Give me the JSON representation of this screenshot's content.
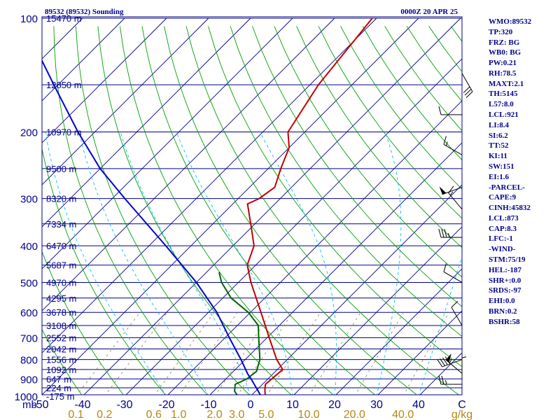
{
  "header": {
    "station": "89532 (89532) Sounding",
    "time": "0000Z 20 APR 25"
  },
  "colors": {
    "frame": "#00008b",
    "isobar": "#00008b",
    "isotherm": "#00008b",
    "dry_adiabat": "#00a000",
    "moist_adiabat": "#00bfff",
    "mixing_ratio": "#8b7d3a",
    "temperature": "#c00000",
    "dewpoint": "#006400",
    "parcel": "#0000cd",
    "wind_barb": "#000000",
    "mixing_ratio_label": "#b8860b"
  },
  "indices": [
    "WMO:89532",
    "TP:320",
    "FRZ: BG",
    "WB0: BG",
    "PW:0.21",
    "RH:78.5",
    "MAXT:2.1",
    "TH:5145",
    "L57:8.0",
    "LCL:921",
    "LI:8.4",
    "SI:6.2",
    "TT:52",
    "KI:11",
    "SW:151",
    "EI:1.6",
    "-PARCEL-",
    "CAPE:9",
    "CINH:45832",
    "LCL:873",
    "CAP:8.3",
    "LFC:-1",
    "-WIND-",
    "STM:75/19",
    "HEL:-187",
    "SHR+:0.0",
    "SRDS:-97",
    "EHI:0.0",
    "BRN:0.2",
    "BSHR:58"
  ],
  "chart_data": {
    "type": "skew-t log-p",
    "title": "89532 (89532) Sounding",
    "valid_time": "0000Z 20 APR 25",
    "xlabel": "",
    "ylabel": "mb",
    "y_scale": "log",
    "ylim": [
      1000,
      100
    ],
    "xlim": [
      -50,
      50
    ],
    "pressure_ticks": [
      100,
      200,
      300,
      400,
      500,
      600,
      700,
      800,
      900,
      1000
    ],
    "temperature_ticks": [
      -50,
      -40,
      -30,
      -20,
      -10,
      0,
      10,
      20,
      30,
      40
    ],
    "temperature_tick_labels": [
      "-50",
      "-40",
      "-30",
      "-20",
      "-10",
      "0",
      "10",
      "20",
      "30",
      "40"
    ],
    "x_end_label": "C",
    "y_unit_label": "mb",
    "mixing_ratio_labels": [
      "0.1",
      "0.2",
      "0.6",
      "1.0",
      "2.0",
      "3.0",
      "5.0",
      "10.0",
      "20.0",
      "40.0"
    ],
    "mixing_ratio_unit": "g/kg",
    "height_levels": [
      {
        "p": 100,
        "label": "15470 m"
      },
      {
        "p": 150,
        "label": "12850 m"
      },
      {
        "p": 200,
        "label": "10970 m"
      },
      {
        "p": 250,
        "label": "9500 m"
      },
      {
        "p": 300,
        "label": "8320 m"
      },
      {
        "p": 350,
        "label": "7334 m"
      },
      {
        "p": 400,
        "label": "6470 m"
      },
      {
        "p": 450,
        "label": "5687 m"
      },
      {
        "p": 500,
        "label": "4970 m"
      },
      {
        "p": 550,
        "label": "4295 m"
      },
      {
        "p": 600,
        "label": "3678 m"
      },
      {
        "p": 650,
        "label": "3108 m"
      },
      {
        "p": 700,
        "label": "2552 m"
      },
      {
        "p": 750,
        "label": "2042 m"
      },
      {
        "p": 800,
        "label": "1556 m"
      },
      {
        "p": 850,
        "label": "1092 m"
      },
      {
        "p": 900,
        "label": "647 m"
      },
      {
        "p": 950,
        "label": "224 m"
      },
      {
        "p": 1000,
        "label": "-175 m"
      }
    ],
    "series": [
      {
        "name": "Temperature",
        "points": [
          {
            "p": 1000,
            "t": 3.5
          },
          {
            "p": 960,
            "t": 1.8
          },
          {
            "p": 930,
            "t": 0.7
          },
          {
            "p": 850,
            "t": 1.3
          },
          {
            "p": 800,
            "t": -2.5
          },
          {
            "p": 700,
            "t": -9.5
          },
          {
            "p": 600,
            "t": -17.5
          },
          {
            "p": 500,
            "t": -27.0
          },
          {
            "p": 450,
            "t": -32.0
          },
          {
            "p": 400,
            "t": -35.0
          },
          {
            "p": 350,
            "t": -41.0
          },
          {
            "p": 310,
            "t": -46.5
          },
          {
            "p": 300,
            "t": -45.0
          },
          {
            "p": 280,
            "t": -44.0
          },
          {
            "p": 250,
            "t": -47.0
          },
          {
            "p": 220,
            "t": -50.0
          },
          {
            "p": 200,
            "t": -54.0
          },
          {
            "p": 150,
            "t": -58.0
          },
          {
            "p": 100,
            "t": -61.0
          }
        ]
      },
      {
        "name": "Dew point",
        "points": [
          {
            "p": 1000,
            "t": -3.0
          },
          {
            "p": 970,
            "t": -5.0
          },
          {
            "p": 930,
            "t": -6.5
          },
          {
            "p": 900,
            "t": -5.0
          },
          {
            "p": 860,
            "t": -4.5
          },
          {
            "p": 800,
            "t": -6.5
          },
          {
            "p": 700,
            "t": -12.0
          },
          {
            "p": 650,
            "t": -15.0
          },
          {
            "p": 600,
            "t": -20.5
          },
          {
            "p": 550,
            "t": -28.0
          },
          {
            "p": 500,
            "t": -34.0
          },
          {
            "p": 470,
            "t": -37.0
          }
        ]
      },
      {
        "name": "Parcel",
        "points": [
          {
            "p": 1000,
            "t": 2.5
          },
          {
            "p": 900,
            "t": -4.0
          },
          {
            "p": 873,
            "t": -6.0
          },
          {
            "p": 800,
            "t": -11.0
          },
          {
            "p": 700,
            "t": -19.0
          },
          {
            "p": 600,
            "t": -28.0
          },
          {
            "p": 500,
            "t": -40.0
          },
          {
            "p": 400,
            "t": -56.0
          },
          {
            "p": 300,
            "t": -77.0
          },
          {
            "p": 250,
            "t": -90.0
          },
          {
            "p": 200,
            "t": -104.0
          },
          {
            "p": 150,
            "t": -121.0
          },
          {
            "p": 120,
            "t": -134.0
          }
        ]
      }
    ],
    "wind_barbs": [
      {
        "p": 140,
        "dir": 150,
        "kt": 30
      },
      {
        "p": 180,
        "dir": 270,
        "kt": 10
      },
      {
        "p": 230,
        "dir": 300,
        "kt": 15
      },
      {
        "p": 280,
        "dir": 250,
        "kt": 50
      },
      {
        "p": 320,
        "dir": 320,
        "kt": 15
      },
      {
        "p": 380,
        "dir": 270,
        "kt": 35
      },
      {
        "p": 500,
        "dir": 300,
        "kt": 10
      },
      {
        "p": 650,
        "dir": 330,
        "kt": 10
      },
      {
        "p": 800,
        "dir": 250,
        "kt": 40
      },
      {
        "p": 870,
        "dir": 310,
        "kt": 55
      },
      {
        "p": 900,
        "dir": 0,
        "kt": 5
      },
      {
        "p": 930,
        "dir": 270,
        "kt": 25
      }
    ]
  }
}
